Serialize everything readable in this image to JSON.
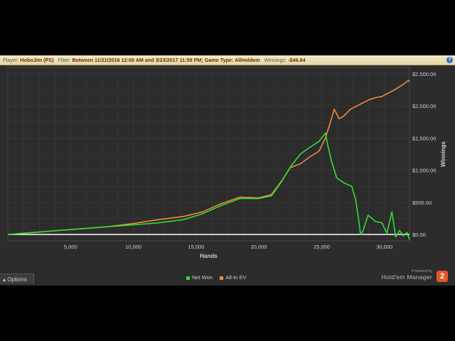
{
  "filter_bar": {
    "player_label": "Player:",
    "player_value": "HoboJim (PS)",
    "filter_label": "Filter:",
    "filter_value": "Between 11/21/2016 12:00 AM and 3/23/2017 11:59 PM; Game Type: AllHoldem",
    "winnings_label": "Winnings:",
    "winnings_value": "-$46.64",
    "help_icon": "?"
  },
  "options_label": "Options",
  "branding": {
    "powered_by": "Powered by",
    "name": "Hold'em Manager",
    "logo_text": "2"
  },
  "colors": {
    "net_won": "#33dd33",
    "all_in_ev": "#f08a3c",
    "zero_line": "#ffffff",
    "background": "#2c2c2c",
    "grid": "#3c3c3c"
  },
  "chart_data": {
    "type": "line",
    "xlabel": "Hands",
    "ylabel": "Winnings",
    "xlim": [
      0,
      32000
    ],
    "ylim": [
      -100,
      2600
    ],
    "x_ticks": [
      5000,
      10000,
      15000,
      20000,
      25000,
      30000
    ],
    "x_tick_labels": [
      "5,000",
      "10,000",
      "15,000",
      "20,000",
      "25,000",
      "30,000"
    ],
    "y_ticks": [
      0,
      500,
      1000,
      1500,
      2000,
      2500
    ],
    "y_tick_labels": [
      "$0.00",
      "$500.00",
      "$1,000.00",
      "$1,500.00",
      "$2,000.00",
      "$2,500.00"
    ],
    "y_axis_side": "right",
    "grid": true,
    "legend_position": "bottom",
    "series": [
      {
        "name": "Net Won",
        "x": [
          0,
          2000,
          4000,
          6000,
          8000,
          10000,
          12000,
          14000,
          15500,
          17000,
          18500,
          20000,
          21000,
          21800,
          22500,
          23300,
          24000,
          24800,
          25300,
          25500,
          25800,
          26200,
          26800,
          27400,
          27700,
          27900,
          28100,
          28300,
          28700,
          29300,
          29800,
          30200,
          30600,
          30900,
          31200,
          31500,
          31800,
          32000
        ],
        "values": [
          0,
          30,
          60,
          90,
          120,
          150,
          180,
          230,
          320,
          450,
          560,
          560,
          600,
          820,
          1050,
          1250,
          1350,
          1450,
          1580,
          1380,
          1130,
          880,
          800,
          750,
          550,
          300,
          0,
          60,
          300,
          200,
          180,
          20,
          350,
          -40,
          60,
          -20,
          30,
          -80
        ]
      },
      {
        "name": "All-In EV",
        "x": [
          0,
          2000,
          4000,
          6000,
          8000,
          10000,
          12000,
          14000,
          15500,
          17000,
          18500,
          20000,
          21000,
          21800,
          22500,
          23300,
          24000,
          24800,
          25300,
          25700,
          26000,
          26400,
          26800,
          27300,
          27800,
          28300,
          28800,
          29300,
          29800,
          30300,
          30800,
          31200,
          31600,
          31900,
          32000
        ],
        "values": [
          0,
          30,
          60,
          90,
          120,
          170,
          230,
          280,
          350,
          480,
          580,
          570,
          620,
          830,
          1040,
          1100,
          1200,
          1300,
          1500,
          1750,
          1950,
          1800,
          1850,
          1950,
          2000,
          2050,
          2100,
          2130,
          2150,
          2200,
          2250,
          2300,
          2350,
          2400,
          2380
        ]
      }
    ]
  }
}
